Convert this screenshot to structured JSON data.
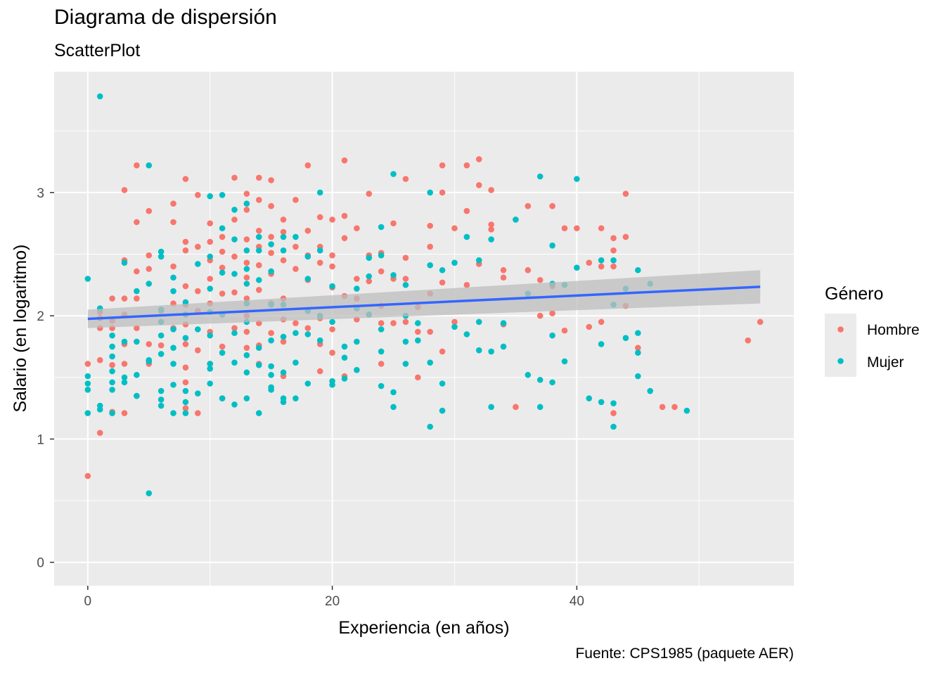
{
  "chart_data": {
    "type": "scatter",
    "title": "Diagrama de dispersión",
    "subtitle": "ScatterPlot",
    "caption": "Fuente: CPS1985 (paquete AER)",
    "xlabel": "Experiencia (en años)",
    "ylabel": "Salario (en logaritmo)",
    "xlim": [
      -2.75,
      57.75
    ],
    "ylim": [
      -0.19,
      3.98
    ],
    "xticks": [
      0,
      20,
      40
    ],
    "xtick_labels": [
      "0",
      "20",
      "40"
    ],
    "yticks": [
      0,
      1,
      2,
      3
    ],
    "ytick_labels": [
      "0",
      "1",
      "2",
      "3"
    ],
    "grid": true,
    "legend": {
      "title": "Género",
      "placement": "right",
      "entries": [
        "Hombre",
        "Mujer"
      ]
    },
    "colors": {
      "Hombre": "#F8766D",
      "Mujer": "#00BFC4",
      "trend": "#3366FF",
      "band": "#BEBEBE",
      "panel": "#EBEBEB",
      "grid": "#FFFFFF"
    },
    "trend": {
      "method": "lm",
      "x": [
        0,
        55
      ],
      "y": [
        1.975,
        2.235
      ],
      "ci_lower": [
        1.9,
        2.1
      ],
      "ci_upper": [
        2.05,
        2.37
      ]
    },
    "series": [
      {
        "name": "Hombre",
        "x": [
          0,
          0,
          1,
          1,
          1,
          1,
          1,
          2,
          2,
          2,
          2,
          2,
          3,
          3,
          3,
          3,
          3,
          3,
          3,
          4,
          4,
          4,
          4,
          4,
          4,
          5,
          5,
          5,
          5,
          5,
          6,
          6,
          7,
          7,
          7,
          7,
          7,
          8,
          8,
          8,
          8,
          8,
          8,
          8,
          8,
          8,
          8,
          9,
          9,
          9,
          9,
          9,
          9,
          10,
          10,
          10,
          10,
          10,
          10,
          10,
          11,
          11,
          11,
          11,
          11,
          11,
          11,
          12,
          12,
          12,
          12,
          12,
          13,
          13,
          13,
          13,
          13,
          13,
          13,
          13,
          13,
          14,
          14,
          14,
          14,
          14,
          14,
          14,
          14,
          14,
          15,
          15,
          15,
          15,
          15,
          15,
          15,
          16,
          16,
          16,
          16,
          16,
          16,
          16,
          17,
          17,
          17,
          17,
          18,
          18,
          18,
          18,
          18,
          19,
          19,
          19,
          19,
          19,
          19,
          20,
          20,
          20,
          20,
          20,
          20,
          21,
          21,
          21,
          21,
          21,
          22,
          22,
          22,
          22,
          23,
          23,
          23,
          23,
          24,
          24,
          24,
          24,
          24,
          25,
          25,
          25,
          26,
          26,
          26,
          26,
          27,
          27,
          27,
          28,
          28,
          28,
          28,
          29,
          29,
          29,
          29,
          30,
          30,
          31,
          31,
          31,
          32,
          32,
          32,
          33,
          33,
          33,
          34,
          34,
          34,
          35,
          35,
          36,
          36,
          37,
          37,
          38,
          38,
          38,
          39,
          39,
          40,
          41,
          41,
          42,
          42,
          42,
          43,
          43,
          43,
          43,
          44,
          44,
          44,
          45,
          47,
          48,
          54,
          55
        ],
        "y": [
          1.61,
          0.7,
          1.9,
          1.64,
          1.05,
          2.03,
          1.98,
          2.14,
          1.96,
          1.9,
          1.6,
          1.22,
          3.02,
          2.45,
          2.14,
          2.01,
          1.77,
          1.61,
          1.21,
          3.22,
          2.76,
          2.36,
          2.14,
          1.9,
          1.35,
          2.85,
          2.49,
          2.38,
          1.77,
          1.61,
          2.04,
          1.76,
          2.91,
          2.76,
          2.4,
          2.1,
          1.9,
          3.11,
          2.6,
          2.53,
          2.24,
          2.09,
          1.93,
          1.77,
          1.58,
          1.46,
          1.25,
          2.98,
          2.56,
          2.2,
          2.04,
          1.72,
          1.21,
          2.75,
          2.6,
          2.45,
          2.3,
          2.1,
          1.87,
          1.61,
          2.64,
          2.52,
          2.39,
          2.18,
          2.01,
          1.75,
          1.33,
          3.12,
          2.78,
          2.48,
          2.19,
          1.9,
          2.99,
          2.86,
          2.62,
          2.43,
          2.31,
          2.14,
          2.0,
          1.87,
          1.74,
          3.12,
          2.94,
          2.69,
          2.56,
          2.41,
          2.21,
          1.94,
          1.76,
          1.61,
          3.1,
          2.89,
          2.64,
          2.51,
          2.34,
          2.1,
          1.86,
          2.78,
          2.68,
          2.45,
          2.14,
          1.97,
          1.79,
          1.51,
          2.94,
          2.56,
          2.38,
          1.94,
          3.22,
          2.69,
          2.49,
          2.29,
          1.9,
          2.8,
          2.56,
          2.43,
          1.98,
          1.77,
          1.55,
          2.78,
          2.49,
          2.4,
          2.23,
          1.89,
          1.7,
          3.26,
          2.81,
          2.63,
          2.16,
          1.51,
          2.71,
          2.3,
          2.14,
          1.97,
          2.99,
          2.49,
          2.28,
          2.01,
          2.51,
          2.36,
          2.08,
          1.94,
          1.61,
          2.75,
          2.3,
          1.94,
          3.11,
          2.47,
          2.3,
          1.95,
          2.07,
          1.87,
          1.5,
          2.73,
          2.56,
          2.18,
          1.87,
          3.22,
          3.0,
          2.27,
          1.71,
          2.71,
          1.95,
          3.22,
          2.85,
          2.25,
          3.27,
          3.06,
          2.42,
          3.02,
          2.74,
          2.7,
          2.37,
          2.31,
          1.93,
          2.78,
          1.26,
          2.89,
          2.37,
          2.29,
          2.0,
          2.89,
          2.24,
          2.02,
          2.71,
          1.88,
          2.71,
          2.43,
          1.91,
          2.71,
          2.4,
          1.95,
          2.63,
          2.53,
          2.4,
          1.21,
          2.99,
          2.64,
          2.08,
          1.74,
          1.26,
          1.26,
          1.8,
          1.95
        ]
      },
      {
        "name": "Mujer",
        "x": [
          0,
          0,
          0,
          0,
          0,
          1,
          1,
          1,
          1,
          2,
          2,
          2,
          2,
          2,
          2,
          2,
          3,
          3,
          3,
          3,
          4,
          4,
          4,
          4,
          5,
          5,
          5,
          5,
          5,
          6,
          6,
          6,
          6,
          6,
          6,
          6,
          6,
          6,
          7,
          7,
          7,
          7,
          7,
          7,
          7,
          8,
          8,
          8,
          8,
          8,
          8,
          9,
          9,
          9,
          10,
          10,
          10,
          10,
          10,
          10,
          10,
          10,
          11,
          11,
          11,
          11,
          11,
          11,
          12,
          12,
          12,
          12,
          12,
          12,
          13,
          13,
          13,
          13,
          13,
          13,
          13,
          13,
          13,
          14,
          14,
          14,
          14,
          14,
          14,
          15,
          15,
          15,
          15,
          15,
          15,
          15,
          15,
          16,
          16,
          16,
          16,
          16,
          16,
          16,
          17,
          17,
          17,
          17,
          18,
          18,
          18,
          18,
          18,
          19,
          19,
          19,
          19,
          20,
          20,
          20,
          20,
          21,
          21,
          21,
          22,
          22,
          22,
          22,
          23,
          23,
          23,
          24,
          24,
          24,
          24,
          24,
          25,
          25,
          25,
          25,
          26,
          26,
          26,
          26,
          27,
          27,
          28,
          28,
          28,
          28,
          29,
          29,
          29,
          30,
          30,
          31,
          31,
          32,
          32,
          32,
          33,
          33,
          33,
          34,
          34,
          35,
          36,
          36,
          37,
          37,
          37,
          38,
          38,
          38,
          38,
          39,
          39,
          40,
          40,
          41,
          42,
          42,
          42,
          43,
          43,
          43,
          43,
          44,
          44,
          45,
          45,
          45,
          45,
          46,
          46,
          49
        ],
        "y": [
          2.3,
          1.51,
          1.45,
          1.4,
          1.21,
          3.78,
          2.06,
          1.27,
          1.24,
          1.84,
          1.75,
          1.67,
          1.55,
          1.46,
          1.4,
          1.21,
          2.43,
          1.79,
          1.5,
          1.46,
          2.2,
          1.79,
          1.52,
          1.35,
          3.22,
          2.26,
          1.64,
          1.63,
          0.56,
          2.52,
          2.48,
          2.05,
          1.95,
          1.84,
          1.69,
          1.39,
          1.32,
          1.27,
          2.31,
          2.2,
          1.89,
          1.74,
          1.61,
          1.44,
          1.21,
          2.11,
          2.01,
          1.82,
          1.39,
          1.3,
          1.21,
          2.42,
          1.89,
          1.37,
          2.97,
          2.48,
          2.22,
          2.03,
          1.84,
          1.61,
          1.57,
          1.45,
          2.98,
          2.71,
          2.35,
          2.01,
          1.7,
          1.33,
          2.86,
          2.62,
          2.34,
          1.86,
          1.62,
          1.28,
          2.91,
          2.53,
          2.38,
          2.26,
          2.1,
          1.95,
          1.68,
          1.54,
          1.33,
          2.64,
          2.53,
          2.29,
          1.74,
          1.6,
          1.21,
          2.58,
          2.36,
          2.09,
          1.8,
          1.59,
          1.52,
          1.42,
          1.4,
          2.64,
          2.53,
          2.09,
          1.83,
          1.54,
          1.33,
          1.3,
          2.64,
          1.86,
          1.62,
          1.33,
          2.48,
          2.3,
          2.04,
          1.85,
          1.45,
          3.0,
          2.53,
          2.0,
          1.8,
          2.24,
          1.95,
          1.47,
          1.44,
          1.75,
          1.66,
          1.49,
          2.22,
          2.06,
          1.79,
          1.56,
          2.47,
          2.32,
          2.01,
          2.72,
          2.49,
          1.89,
          1.71,
          1.43,
          3.15,
          2.33,
          1.38,
          1.26,
          2.25,
          2.0,
          1.79,
          1.61,
          1.94,
          1.8,
          3.0,
          2.41,
          1.62,
          1.1,
          2.37,
          1.45,
          1.23,
          2.43,
          1.91,
          2.64,
          1.85,
          2.45,
          1.95,
          1.72,
          2.62,
          1.71,
          1.26,
          1.94,
          1.75,
          2.78,
          2.18,
          1.52,
          3.13,
          1.48,
          1.26,
          2.57,
          2.26,
          1.84,
          1.46,
          2.25,
          1.63,
          3.11,
          2.39,
          1.33,
          2.45,
          1.77,
          1.3,
          2.45,
          2.09,
          1.29,
          1.1,
          2.22,
          1.82,
          2.37,
          1.86,
          1.7,
          1.51,
          2.26,
          1.39,
          1.23
        ]
      }
    ]
  }
}
